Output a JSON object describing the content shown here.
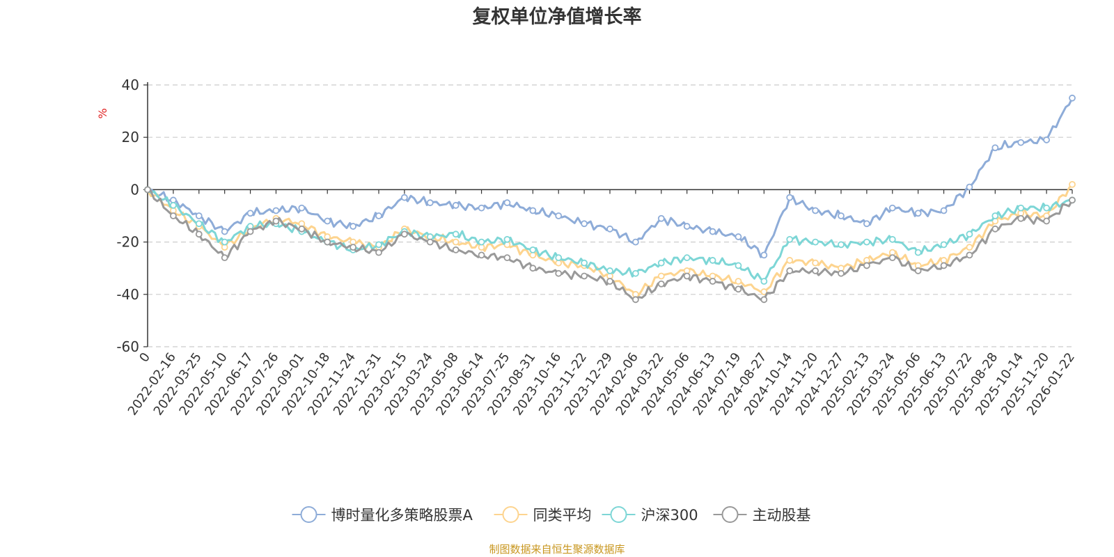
{
  "chart_data": {
    "type": "line",
    "title": "复权单位净值增长率",
    "ylabel": "%",
    "xlabel": "",
    "ylim": [
      -60,
      40
    ],
    "yticks": [
      40,
      20,
      0,
      -20,
      -40,
      -60
    ],
    "grid": true,
    "legend_position": "bottom",
    "source": "制图数据来自恒生聚源数据库",
    "categories": [
      "0",
      "2022-02-16",
      "2022-03-25",
      "2022-05-10",
      "2022-06-17",
      "2022-07-26",
      "2022-09-01",
      "2022-10-18",
      "2022-11-24",
      "2022-12-31",
      "2023-02-15",
      "2023-03-24",
      "2023-05-08",
      "2023-06-14",
      "2023-07-25",
      "2023-08-31",
      "2023-10-16",
      "2023-11-22",
      "2023-12-29",
      "2024-02-06",
      "2024-03-22",
      "2024-05-06",
      "2024-06-13",
      "2024-07-19",
      "2024-08-27",
      "2024-10-14",
      "2024-11-20",
      "2024-12-27",
      "2025-02-13",
      "2025-03-24",
      "2025-05-06",
      "2025-06-13",
      "2025-07-22",
      "2025-08-28",
      "2025-10-14",
      "2025-11-20",
      "2026-01-22"
    ],
    "series": [
      {
        "name": "博时量化多策略股票A",
        "color": "#8eacd8",
        "values": [
          0,
          -4,
          -10,
          -16,
          -9,
          -8,
          -7,
          -12,
          -14,
          -10,
          -3,
          -5,
          -6,
          -7,
          -5,
          -8,
          -10,
          -13,
          -15,
          -20,
          -11,
          -14,
          -16,
          -18,
          -25,
          -3,
          -8,
          -10,
          -13,
          -7,
          -9,
          -8,
          1,
          16,
          18,
          19,
          35
        ]
      },
      {
        "name": "同类平均",
        "color": "#fdd48f",
        "values": [
          0,
          -8,
          -14,
          -22,
          -15,
          -11,
          -13,
          -18,
          -20,
          -22,
          -15,
          -18,
          -20,
          -22,
          -21,
          -25,
          -28,
          -29,
          -33,
          -40,
          -33,
          -31,
          -33,
          -35,
          -39,
          -27,
          -28,
          -30,
          -27,
          -24,
          -29,
          -27,
          -22,
          -12,
          -9,
          -10,
          2
        ]
      },
      {
        "name": "沪深300",
        "color": "#7dd6d6",
        "values": [
          0,
          -6,
          -13,
          -20,
          -14,
          -13,
          -16,
          -20,
          -23,
          -21,
          -16,
          -18,
          -17,
          -20,
          -19,
          -23,
          -26,
          -28,
          -31,
          -32,
          -28,
          -26,
          -27,
          -29,
          -35,
          -19,
          -20,
          -21,
          -20,
          -19,
          -24,
          -21,
          -17,
          -10,
          -7,
          -7,
          -4
        ]
      },
      {
        "name": "主动股基",
        "color": "#999999",
        "values": [
          0,
          -10,
          -17,
          -26,
          -16,
          -12,
          -15,
          -20,
          -22,
          -24,
          -17,
          -20,
          -23,
          -25,
          -26,
          -30,
          -32,
          -33,
          -35,
          -42,
          -36,
          -33,
          -35,
          -38,
          -42,
          -31,
          -31,
          -32,
          -29,
          -26,
          -31,
          -29,
          -25,
          -15,
          -11,
          -12,
          -4
        ]
      }
    ]
  }
}
